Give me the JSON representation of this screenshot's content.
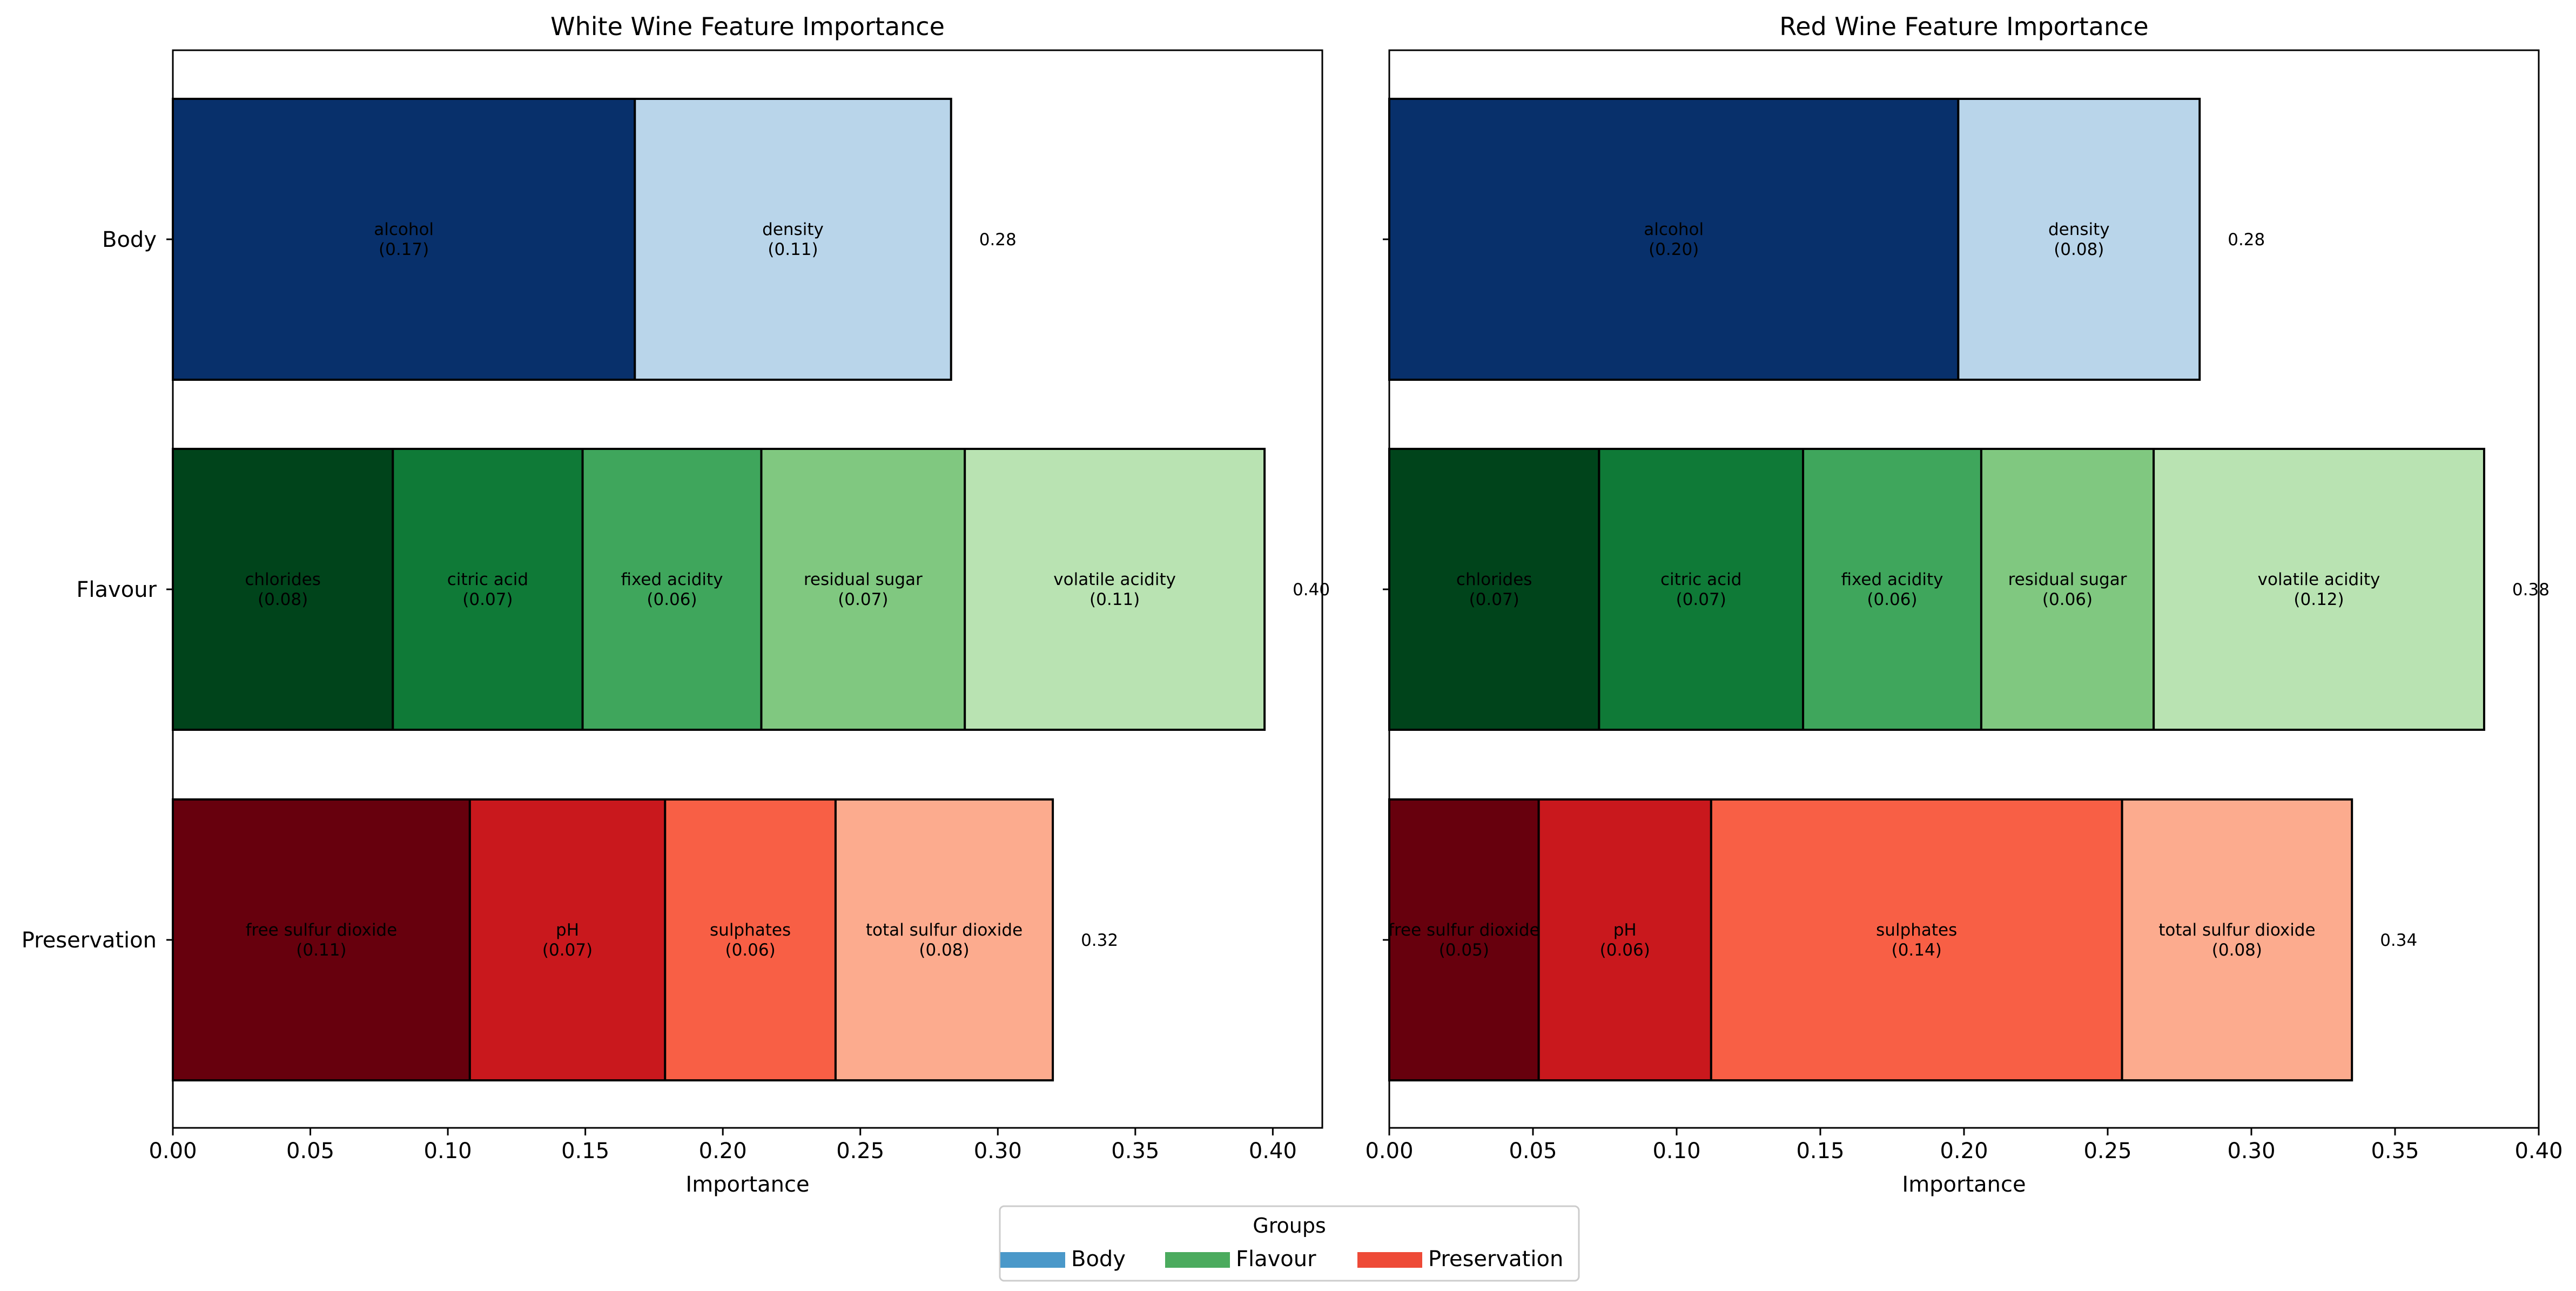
{
  "chart_data": [
    {
      "type": "bar",
      "orientation": "horizontal",
      "stacked": true,
      "title": "White Wine Feature Importance",
      "xlabel": "Importance",
      "ylabel": "",
      "xlim": [
        0,
        0.418
      ],
      "xticks": [
        "0.00",
        "0.05",
        "0.10",
        "0.15",
        "0.20",
        "0.25",
        "0.30",
        "0.35",
        "0.40"
      ],
      "categories": [
        "Body",
        "Flavour",
        "Preservation"
      ],
      "groups": [
        {
          "name": "Body",
          "total": 0.283,
          "total_label": "0.28",
          "segments": [
            {
              "feature": "alcohol",
              "value": 0.168,
              "value_label": "(0.17)",
              "color": "#08306b",
              "label_color": "#000000"
            },
            {
              "feature": "density",
              "value": 0.115,
              "value_label": "(0.11)",
              "color": "#b9d5ea",
              "label_color": "#000000"
            }
          ]
        },
        {
          "name": "Flavour",
          "total": 0.397,
          "total_label": "0.40",
          "segments": [
            {
              "feature": "chlorides",
              "value": 0.08,
              "value_label": "(0.08)",
              "color": "#00441b",
              "label_color": "#000000"
            },
            {
              "feature": "citric acid",
              "value": 0.069,
              "value_label": "(0.07)",
              "color": "#0f7a37",
              "label_color": "#000000"
            },
            {
              "feature": "fixed acidity",
              "value": 0.065,
              "value_label": "(0.06)",
              "color": "#3fa65c",
              "label_color": "#000000"
            },
            {
              "feature": "residual sugar",
              "value": 0.074,
              "value_label": "(0.07)",
              "color": "#80c880",
              "label_color": "#000000"
            },
            {
              "feature": "volatile acidity",
              "value": 0.109,
              "value_label": "(0.11)",
              "color": "#b9e3b2",
              "label_color": "#000000"
            }
          ]
        },
        {
          "name": "Preservation",
          "total": 0.32,
          "total_label": "0.32",
          "segments": [
            {
              "feature": "free sulfur dioxide",
              "value": 0.108,
              "value_label": "(0.11)",
              "color": "#67000d",
              "label_color": "#000000"
            },
            {
              "feature": "pH",
              "value": 0.071,
              "value_label": "(0.07)",
              "color": "#c9181d",
              "label_color": "#000000"
            },
            {
              "feature": "sulphates",
              "value": 0.062,
              "value_label": "(0.06)",
              "color": "#f85f45",
              "label_color": "#000000"
            },
            {
              "feature": "total sulfur dioxide",
              "value": 0.079,
              "value_label": "(0.08)",
              "color": "#fcab8e",
              "label_color": "#000000"
            }
          ]
        }
      ]
    },
    {
      "type": "bar",
      "orientation": "horizontal",
      "stacked": true,
      "title": "Red Wine Feature Importance",
      "xlabel": "Importance",
      "ylabel": "",
      "xlim": [
        0,
        0.4
      ],
      "xticks": [
        "0.00",
        "0.05",
        "0.10",
        "0.15",
        "0.20",
        "0.25",
        "0.30",
        "0.35",
        "0.40"
      ],
      "categories": [
        "Body",
        "Flavour",
        "Preservation"
      ],
      "groups": [
        {
          "name": "Body",
          "total": 0.282,
          "total_label": "0.28",
          "segments": [
            {
              "feature": "alcohol",
              "value": 0.198,
              "value_label": "(0.20)",
              "color": "#08306b",
              "label_color": "#000000"
            },
            {
              "feature": "density",
              "value": 0.084,
              "value_label": "(0.08)",
              "color": "#b9d5ea",
              "label_color": "#000000"
            }
          ]
        },
        {
          "name": "Flavour",
          "total": 0.381,
          "total_label": "0.38",
          "segments": [
            {
              "feature": "chlorides",
              "value": 0.073,
              "value_label": "(0.07)",
              "color": "#00441b",
              "label_color": "#000000"
            },
            {
              "feature": "citric acid",
              "value": 0.071,
              "value_label": "(0.07)",
              "color": "#0f7a37",
              "label_color": "#000000"
            },
            {
              "feature": "fixed acidity",
              "value": 0.062,
              "value_label": "(0.06)",
              "color": "#3fa65c",
              "label_color": "#000000"
            },
            {
              "feature": "residual sugar",
              "value": 0.06,
              "value_label": "(0.06)",
              "color": "#80c880",
              "label_color": "#000000"
            },
            {
              "feature": "volatile acidity",
              "value": 0.115,
              "value_label": "(0.12)",
              "color": "#b9e3b2",
              "label_color": "#000000"
            }
          ]
        },
        {
          "name": "Preservation",
          "total": 0.335,
          "total_label": "0.34",
          "segments": [
            {
              "feature": "free sulfur dioxide",
              "value": 0.052,
              "value_label": "(0.05)",
              "color": "#67000d",
              "label_color": "#000000"
            },
            {
              "feature": "pH",
              "value": 0.06,
              "value_label": "(0.06)",
              "color": "#c9181d",
              "label_color": "#000000"
            },
            {
              "feature": "sulphates",
              "value": 0.143,
              "value_label": "(0.14)",
              "color": "#f85f45",
              "label_color": "#000000"
            },
            {
              "feature": "total sulfur dioxide",
              "value": 0.08,
              "value_label": "(0.08)",
              "color": "#fcab8e",
              "label_color": "#000000"
            }
          ]
        }
      ]
    }
  ],
  "legend": {
    "title": "Groups",
    "placement": "bottom-center",
    "items": [
      {
        "label": "Body",
        "color": "#4a98c9"
      },
      {
        "label": "Flavour",
        "color": "#4bab5e"
      },
      {
        "label": "Preservation",
        "color": "#ee4a37"
      }
    ]
  }
}
